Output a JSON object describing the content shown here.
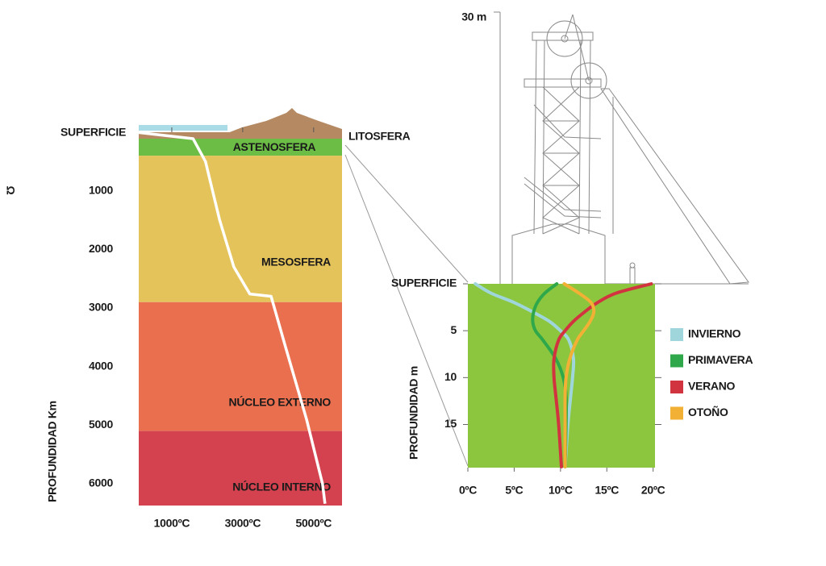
{
  "chart_data": [
    {
      "type": "layers",
      "y_label": "PROFUNDIDAD Km",
      "surface_label": "SUPERFICIE",
      "ylim": [
        0,
        6371
      ],
      "yticks": [
        1000,
        2000,
        3000,
        4000,
        5000,
        6000
      ],
      "xlim": [
        0,
        5800
      ],
      "xticks": [
        {
          "value": 1000,
          "label": "1000ºC"
        },
        {
          "value": 3000,
          "label": "3000ºC"
        },
        {
          "value": 5000,
          "label": "5000ºC"
        }
      ],
      "layers": [
        {
          "name": "LITOSFERA",
          "from": 0,
          "to": 110,
          "color": "#b58a63"
        },
        {
          "name": "ASTENOSFERA",
          "from": 110,
          "to": 400,
          "color": "#6cbd45"
        },
        {
          "name": "MESOSFERA",
          "from": 400,
          "to": 2900,
          "color": "#e4c35a"
        },
        {
          "name": "NÚCLEO EXTERNO",
          "from": 2900,
          "to": 5100,
          "color": "#e96f4f"
        },
        {
          "name": "NÚCLEO INTERNO",
          "from": 5100,
          "to": 6371,
          "color": "#d3424e"
        }
      ],
      "curve": {
        "color": "#ffffff",
        "depths": [
          0,
          110,
          500,
          1500,
          2300,
          2760,
          2800,
          3650,
          4900,
          6000,
          6340
        ],
        "temperatures": [
          0,
          1600,
          1950,
          2350,
          2750,
          3200,
          3800,
          4200,
          4800,
          5250,
          5320
        ]
      }
    },
    {
      "type": "line",
      "y_label": "PROFUNDIDAD m",
      "xlim": [
        0,
        20.2
      ],
      "xticks": [
        {
          "value": 0,
          "label": "0ºC"
        },
        {
          "value": 5,
          "label": "5ºC"
        },
        {
          "value": 10,
          "label": "10ºC"
        },
        {
          "value": 15,
          "label": "15ºC"
        },
        {
          "value": 20,
          "label": "20ºC"
        }
      ],
      "ylim": [
        0,
        19.6
      ],
      "yticks": [
        {
          "value": 0,
          "label": "SUPERFICIE"
        },
        5,
        10,
        15
      ],
      "background": "#8cc63f",
      "height_label": "30 m",
      "depths": [
        0,
        1,
        2,
        3,
        4,
        5,
        6,
        8,
        10,
        12,
        15,
        19.5
      ],
      "series": [
        {
          "name": "INVIERNO",
          "color": "#9fd6dc",
          "values": [
            0.8,
            2.5,
            5,
            7,
            8.8,
            10,
            10.9,
            11.4,
            11.3,
            11.1,
            10.8,
            10.5
          ]
        },
        {
          "name": "PRIMAVERA",
          "color": "#2ea84a",
          "values": [
            9.6,
            8.3,
            7.5,
            7.1,
            7.0,
            7.3,
            8.1,
            9.5,
            10.3,
            10.6,
            10.6,
            10.5
          ]
        },
        {
          "name": "VERANO",
          "color": "#d1343f",
          "values": [
            19.8,
            16,
            14,
            12.6,
            11.4,
            10.5,
            9.8,
            9.3,
            9.3,
            9.5,
            9.8,
            10.1
          ]
        },
        {
          "name": "OTOÑO",
          "color": "#f2b134",
          "values": [
            10.4,
            12,
            13.3,
            13.6,
            13.2,
            12.5,
            11.8,
            11,
            10.6,
            10.5,
            10.5,
            10.5
          ]
        }
      ]
    }
  ],
  "edge_mark": "Ω"
}
